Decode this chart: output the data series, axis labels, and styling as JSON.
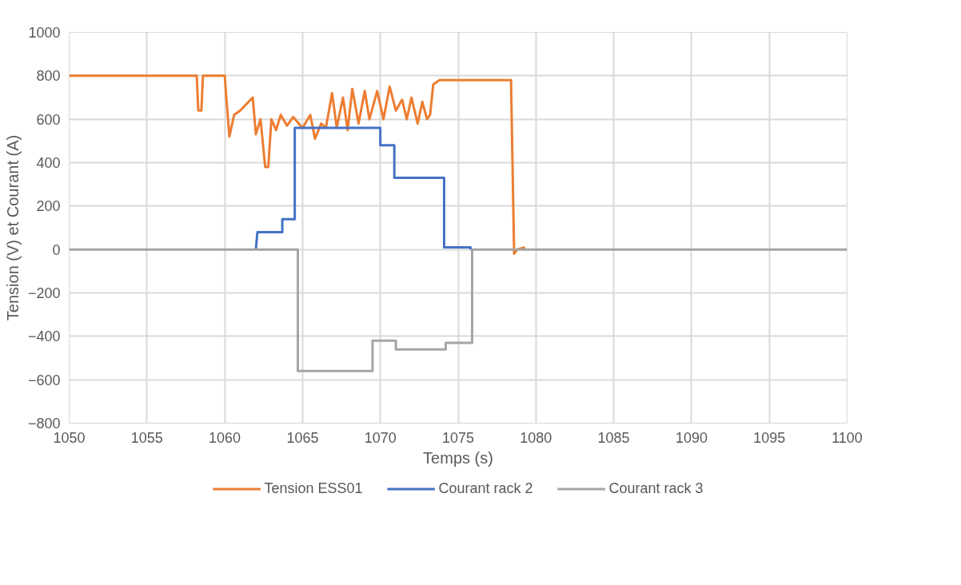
{
  "chart_data": {
    "type": "line",
    "xlabel": "Temps (s)",
    "ylabel": "Tension (V) et Courant (A)",
    "xlim": [
      1050,
      1100
    ],
    "xticks": [
      1050,
      1055,
      1060,
      1065,
      1070,
      1075,
      1080,
      1085,
      1090,
      1095,
      1100
    ],
    "ylim": [
      -800,
      1000
    ],
    "yticks": [
      -800,
      -600,
      -400,
      -200,
      0,
      200,
      400,
      600,
      800,
      1000
    ],
    "grid": true,
    "legend": "bottom",
    "line_style": "solid",
    "marker": "none",
    "series": [
      {
        "name": "Tension ESS01",
        "color": "#ed7d31",
        "x": [
          1050,
          1058.2,
          1058.3,
          1058.5,
          1058.6,
          1060,
          1060.1,
          1060.3,
          1060.6,
          1061,
          1061.8,
          1062,
          1062.3,
          1062.6,
          1062.8,
          1063,
          1063.3,
          1063.6,
          1064,
          1064.4,
          1065,
          1065.5,
          1065.8,
          1066.2,
          1066.5,
          1066.9,
          1067.2,
          1067.6,
          1067.9,
          1068.2,
          1068.6,
          1069,
          1069.3,
          1069.8,
          1070.2,
          1070.6,
          1071,
          1071.4,
          1071.7,
          1072,
          1072.4,
          1072.7,
          1073,
          1073.2,
          1073.4,
          1073.8,
          1078.4,
          1078.6,
          1078.8,
          1079.3
        ],
        "values": [
          800,
          800,
          640,
          640,
          800,
          800,
          700,
          520,
          620,
          640,
          700,
          530,
          600,
          380,
          380,
          600,
          550,
          620,
          570,
          610,
          560,
          620,
          510,
          580,
          560,
          720,
          560,
          700,
          550,
          740,
          580,
          730,
          600,
          730,
          600,
          750,
          640,
          690,
          600,
          700,
          580,
          680,
          600,
          620,
          760,
          780,
          780,
          -20,
          0,
          10
        ]
      },
      {
        "name": "Courant rack 2",
        "color": "#4472c4",
        "x": [
          1062,
          1062.1,
          1063.7,
          1063.7,
          1064.5,
          1064.5,
          1070,
          1070,
          1070.9,
          1070.9,
          1074.1,
          1074.1,
          1075.8,
          1075.8
        ],
        "values": [
          0,
          80,
          80,
          140,
          140,
          560,
          560,
          480,
          480,
          330,
          330,
          10,
          10,
          0
        ]
      },
      {
        "name": "Courant rack 3",
        "color": "#a5a5a5",
        "x": [
          1050,
          1064.7,
          1064.7,
          1069.5,
          1069.5,
          1071,
          1071,
          1074.2,
          1074.2,
          1075.9,
          1075.9,
          1100
        ],
        "values": [
          0,
          0,
          -560,
          -560,
          -420,
          -420,
          -460,
          -460,
          -430,
          -430,
          0,
          0
        ]
      }
    ]
  }
}
